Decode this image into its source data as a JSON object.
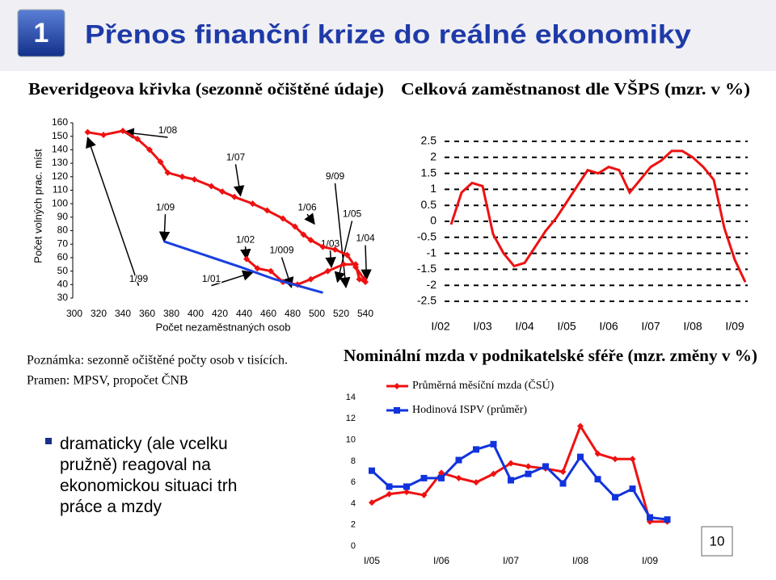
{
  "header": {
    "number": "1",
    "title": "Přenos finanční krize do reálné ekonomiky"
  },
  "chart_data": [
    {
      "type": "line",
      "title": "Beveridgeova křivka (sezonně očištěné údaje)",
      "x_label": "Počet nezaměstnaných osob",
      "y_label": "Počet volných prac. míst",
      "xlim": [
        300,
        540
      ],
      "xticks": [
        300,
        320,
        340,
        360,
        380,
        400,
        420,
        440,
        460,
        480,
        500,
        520,
        540
      ],
      "ylim": [
        30,
        160
      ],
      "yticks": [
        30,
        40,
        50,
        60,
        70,
        80,
        90,
        100,
        110,
        120,
        130,
        140,
        150,
        160
      ],
      "grid": false,
      "series": [
        {
          "color": "#ee1111",
          "marker": "diamond",
          "x": [
            311,
            324,
            340,
            352,
            362,
            371,
            377,
            389,
            399,
            413,
            422,
            432,
            447,
            459,
            472,
            482,
            489,
            495,
            505,
            515,
            525,
            532,
            539,
            null,
            442,
            451,
            462,
            472,
            484,
            495,
            509,
            522,
            532,
            535,
            540
          ],
          "values": [
            153,
            151,
            154,
            148,
            140,
            131,
            123,
            120,
            118,
            113,
            109,
            105,
            100,
            95,
            89,
            83,
            77,
            73,
            68,
            66,
            62,
            53,
            44,
            null,
            59,
            52,
            50,
            42,
            40,
            44,
            50,
            55,
            55,
            44,
            42
          ]
        },
        {
          "color": "#1a3fe0",
          "x": [
            374,
            437,
            465,
            505
          ],
          "values": [
            72,
            53,
            44,
            34
          ]
        }
      ],
      "annotations": [
        {
          "text": "1/08",
          "x": 377,
          "y": 154,
          "target": [
            341,
            153
          ]
        },
        {
          "text": "1/07",
          "x": 433,
          "y": 134,
          "target": [
            437,
            106
          ]
        },
        {
          "text": "9/09",
          "x": 515,
          "y": 120,
          "target": [
            524,
            38
          ]
        },
        {
          "text": "1/09",
          "x": 375,
          "y": 97,
          "target": [
            374,
            72
          ]
        },
        {
          "text": "1/06",
          "x": 492,
          "y": 97,
          "target": [
            498,
            85
          ]
        },
        {
          "text": "1/05",
          "x": 529,
          "y": 92,
          "target": [
            517,
            42
          ]
        },
        {
          "text": "1/02",
          "x": 441,
          "y": 73,
          "target": [
            442,
            59
          ]
        },
        {
          "text": "1/04",
          "x": 540,
          "y": 74,
          "target": [
            541,
            44
          ]
        },
        {
          "text": "1/03",
          "x": 511,
          "y": 70,
          "target": [
            512,
            53
          ]
        },
        {
          "text": "1/009",
          "x": 471,
          "y": 65,
          "target": [
            479,
            38
          ]
        },
        {
          "text": "1/99",
          "x": 353,
          "y": 44,
          "target": [
            311,
            149
          ]
        },
        {
          "text": "1/01",
          "x": 413,
          "y": 44,
          "target": [
            447,
            49
          ]
        }
      ]
    },
    {
      "type": "line",
      "title": "Celková zaměstnanost dle VŠPS (mzr. v %)",
      "categories": [
        "I/02",
        null,
        null,
        null,
        "I/03",
        null,
        null,
        null,
        "I/04",
        null,
        null,
        null,
        "I/05",
        null,
        null,
        null,
        "I/06",
        null,
        null,
        null,
        "I/07",
        null,
        null,
        null,
        "I/08",
        null,
        null,
        null,
        "I/09",
        null
      ],
      "ylim": [
        -2.5,
        2.5
      ],
      "yticks": [
        2.5,
        2,
        1.5,
        1,
        0.5,
        0,
        -0.5,
        -1,
        -1.5,
        -2,
        -2.5
      ],
      "grid": true,
      "series": [
        {
          "color": "#ee1111",
          "values": [
            null,
            -0.1,
            0.9,
            1.2,
            1.1,
            -0.4,
            -1.0,
            -1.4,
            -1.3,
            -0.8,
            -0.3,
            0.1,
            0.6,
            1.1,
            1.6,
            1.5,
            1.7,
            1.6,
            0.9,
            1.3,
            1.7,
            1.9,
            2.2,
            2.2,
            2.0,
            1.7,
            1.3,
            -0.2,
            -1.2,
            -1.9
          ]
        }
      ]
    },
    {
      "type": "line",
      "title": "Nominální mzda v podnikatelské sféře (mzr. změny v %)",
      "categories": [
        "I/05",
        null,
        null,
        null,
        "I/06",
        null,
        null,
        null,
        "I/07",
        null,
        null,
        null,
        "I/08",
        null,
        null,
        null,
        "I/09",
        null
      ],
      "ylim": [
        0,
        14
      ],
      "yticks": [
        0,
        2,
        4,
        6,
        8,
        10,
        12,
        14
      ],
      "grid": false,
      "legend": "top",
      "series": [
        {
          "name": "Průměrná měsíční mzda (ČSÚ)",
          "color": "#ee1111",
          "marker": "diamond",
          "values": [
            4.1,
            4.9,
            5.1,
            4.8,
            6.9,
            6.4,
            6.0,
            6.8,
            7.8,
            7.5,
            7.3,
            7.0,
            11.3,
            8.7,
            8.2,
            8.2,
            2.3,
            2.3
          ]
        },
        {
          "name": "Hodinová ISPV (průměr)",
          "color": "#1133dd",
          "marker": "square",
          "values": [
            7.1,
            5.6,
            5.6,
            6.4,
            6.4,
            8.1,
            9.1,
            9.6,
            6.2,
            6.8,
            7.5,
            5.9,
            8.4,
            6.3,
            4.6,
            5.4,
            2.7,
            2.5
          ]
        }
      ]
    }
  ],
  "notes": [
    "Poznámka: sezonně očištěné počty osob v tisících.",
    "Pramen: MPSV, propočet ČNB"
  ],
  "bullet": "dramaticky (ale vcelku pružně) reagoval na ekonomickou situaci trh práce a mzdy",
  "page_number": "10"
}
